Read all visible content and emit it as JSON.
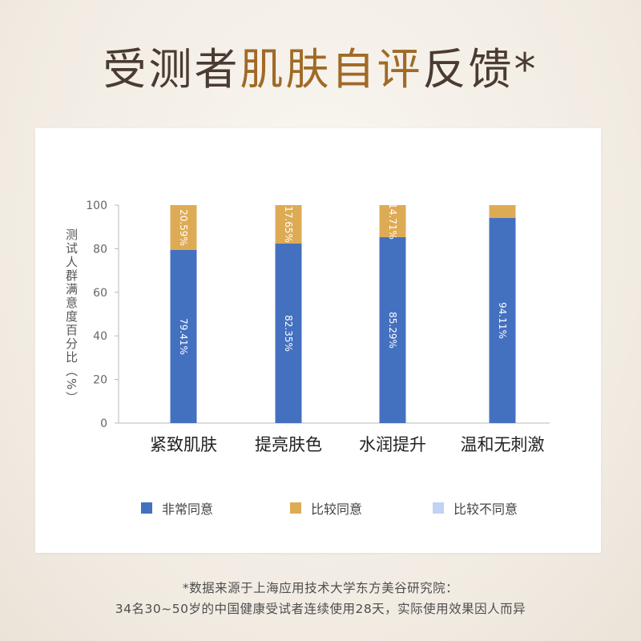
{
  "title": {
    "part1": "受测者",
    "part2": "肌肤自评",
    "part3": "反馈*"
  },
  "chart_data": {
    "type": "bar",
    "stacked": true,
    "categories": [
      "紧致肌肤",
      "提亮肤色",
      "水润提升",
      "温和无刺激"
    ],
    "series": [
      {
        "name": "非常同意",
        "values": [
          79.41,
          82.35,
          85.29,
          94.11
        ],
        "labels": [
          "79.41%",
          "82.35%",
          "85.29%",
          "94.11%"
        ],
        "color": "#4470c0"
      },
      {
        "name": "比较同意",
        "values": [
          20.59,
          17.65,
          14.71,
          5.89
        ],
        "labels": [
          "20.59%",
          "17.65%",
          "14.71%",
          ""
        ],
        "color": "#deab55"
      },
      {
        "name": "比较不同意",
        "values": [
          0,
          0,
          0,
          0
        ],
        "labels": [
          "",
          "",
          "",
          ""
        ],
        "color": "#bfd3f2"
      }
    ],
    "ylabel": "测试人群满意度百分比（%）",
    "ylim": [
      0,
      100
    ],
    "yticks": [
      "0",
      "20",
      "40",
      "60",
      "80",
      "100"
    ],
    "grid": false,
    "legend_position": "bottom"
  },
  "footnote": {
    "line1": "*数据来源于上海应用技术大学东方美谷研究院：",
    "line2": "34名30~50岁的中国健康受试者连续使用28天，实际使用效果因人而异"
  }
}
